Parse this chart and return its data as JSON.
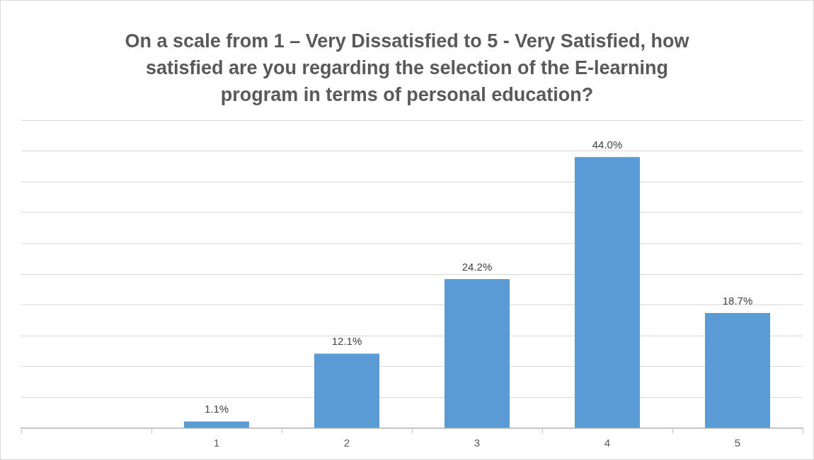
{
  "chart_data": {
    "type": "bar",
    "title": "On a scale from 1 – Very Dissatisfied to 5 - Very Satisfied, how satisfied are you regarding the selection of the E-learning program in terms of personal education?",
    "categories": [
      null,
      "1",
      "2",
      "3",
      "4",
      "5"
    ],
    "values": [
      null,
      1.1,
      12.1,
      24.2,
      44.0,
      18.7
    ],
    "value_labels": [
      null,
      "1.1%",
      "12.1%",
      "24.2%",
      "44.0%",
      "18.7%"
    ],
    "color": "#5b9bd5",
    "ylim": [
      0,
      50
    ],
    "yticks": [
      {
        "value": 0,
        "label": null
      },
      {
        "value": 5,
        "label": null
      },
      {
        "value": 10,
        "label": null
      },
      {
        "value": 15,
        "label": null
      },
      {
        "value": 20,
        "label": null
      },
      {
        "value": 25,
        "label": null
      },
      {
        "value": 30,
        "label": null
      },
      {
        "value": 35,
        "label": null
      },
      {
        "value": 40,
        "label": null
      },
      {
        "value": 45,
        "label": null
      },
      {
        "value": 50,
        "label": null
      }
    ],
    "grid": "y",
    "tick_labels": "x"
  }
}
